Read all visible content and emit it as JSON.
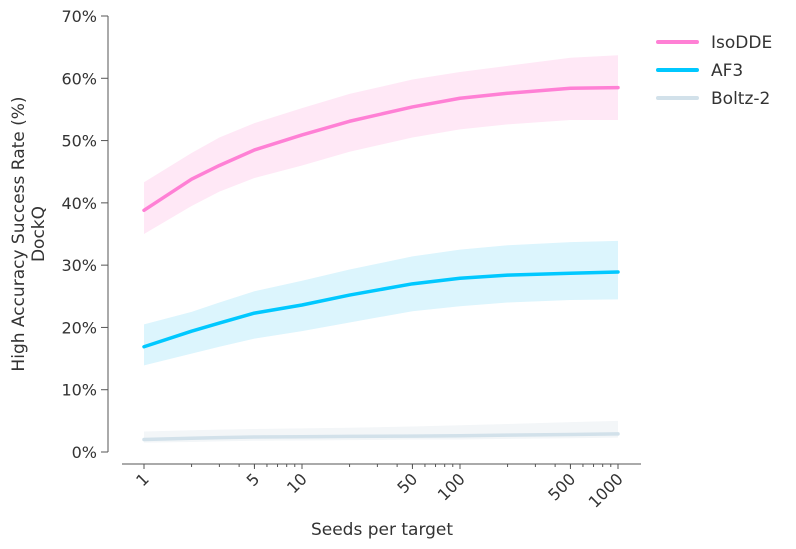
{
  "chart_data": {
    "type": "line",
    "title": "",
    "xlabel": "Seeds per target",
    "ylabel_lines": [
      "High Accuracy Success Rate (%)",
      "DockQ"
    ],
    "x_scale": "log",
    "xlim": [
      0.72,
      1400
    ],
    "ylim": [
      0,
      70
    ],
    "x_ticks": [
      1,
      5,
      10,
      50,
      100,
      500,
      1000
    ],
    "x_tick_labels": [
      "1",
      "5",
      "10",
      "50",
      "100",
      "500",
      "1000"
    ],
    "y_ticks": [
      0,
      10,
      20,
      30,
      40,
      50,
      60,
      70
    ],
    "y_tick_labels": [
      "0%",
      "10%",
      "20%",
      "30%",
      "40%",
      "50%",
      "60%",
      "70%"
    ],
    "grid": false,
    "legend_position": "top-right",
    "x": [
      1,
      2,
      3,
      5,
      10,
      20,
      50,
      100,
      200,
      500,
      1000
    ],
    "series": [
      {
        "name": "IsoDDE",
        "color": "#ff80d5",
        "band_color": "#ffe8f6",
        "values": [
          38.8,
          43.8,
          46.0,
          48.5,
          50.9,
          53.1,
          55.4,
          56.8,
          57.6,
          58.4,
          58.5
        ],
        "lower": [
          35.0,
          39.5,
          41.8,
          44.0,
          46.0,
          48.2,
          50.5,
          51.8,
          52.6,
          53.3,
          53.3
        ],
        "upper": [
          43.3,
          48.0,
          50.5,
          52.8,
          55.2,
          57.5,
          59.8,
          61.0,
          62.0,
          63.3,
          63.7
        ]
      },
      {
        "name": "AF3",
        "color": "#00c8ff",
        "band_color": "#dcf5fd",
        "values": [
          16.9,
          19.4,
          20.7,
          22.3,
          23.6,
          25.2,
          27.0,
          27.9,
          28.4,
          28.7,
          28.9
        ],
        "lower": [
          13.9,
          15.8,
          16.9,
          18.2,
          19.4,
          20.8,
          22.6,
          23.4,
          24.0,
          24.4,
          24.5
        ],
        "upper": [
          20.5,
          22.5,
          24.0,
          25.8,
          27.5,
          29.3,
          31.4,
          32.5,
          33.2,
          33.7,
          33.9
        ]
      },
      {
        "name": "Boltz-2",
        "color": "#d2e1ea",
        "band_color": "#f3f6f8",
        "values": [
          2.0,
          2.2,
          2.3,
          2.4,
          2.45,
          2.5,
          2.55,
          2.6,
          2.7,
          2.8,
          2.9
        ],
        "lower": [
          1.5,
          1.6,
          1.7,
          1.8,
          1.85,
          1.9,
          2.0,
          2.0,
          2.1,
          2.2,
          2.3
        ],
        "upper": [
          3.3,
          3.5,
          3.6,
          3.7,
          3.8,
          3.9,
          4.1,
          4.3,
          4.5,
          4.8,
          5.0
        ]
      }
    ]
  }
}
